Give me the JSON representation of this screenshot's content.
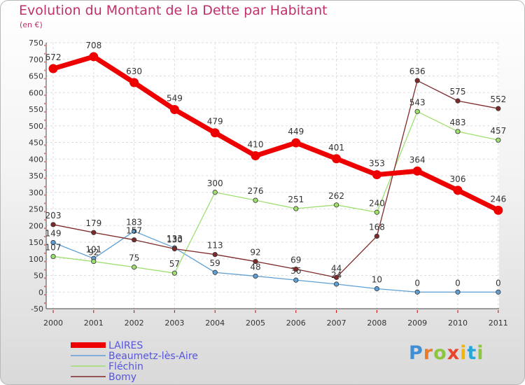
{
  "header": {
    "title": "Evolution du Montant de la Dette par Habitant",
    "subtitle": "(en €)"
  },
  "logo": {
    "letters": [
      "P",
      "r",
      "o",
      "x",
      "i",
      "t",
      "i"
    ],
    "colors": [
      "#3f8fd6",
      "#e87c2a",
      "#8cc63f",
      "#e8452c",
      "#f2b705",
      "#2aa6d6",
      "#8cc63f"
    ]
  },
  "chart_data": {
    "type": "line",
    "title": "Evolution du Montant de la Dette par Habitant",
    "subtitle": "(en €)",
    "xlabel": "",
    "ylabel": "",
    "x": [
      "2000",
      "2001",
      "2002",
      "2003",
      "2004",
      "2005",
      "2006",
      "2007",
      "2008",
      "2009",
      "2010",
      "2011"
    ],
    "ylim": [
      -50,
      750
    ],
    "yticks": [
      -50,
      0,
      50,
      100,
      150,
      200,
      250,
      300,
      350,
      400,
      450,
      500,
      550,
      600,
      650,
      700,
      750
    ],
    "grid": true,
    "legend": "bottom-left",
    "series": [
      {
        "name": "LAIRES",
        "color": "#ee0000",
        "width": 7,
        "values": [
          672,
          708,
          630,
          549,
          479,
          410,
          449,
          401,
          353,
          364,
          306,
          246
        ]
      },
      {
        "name": "Beaumetz-lès-Aire",
        "color": "#5f9fd3",
        "width": 1.3,
        "values": [
          149,
          101,
          183,
          133,
          59,
          48,
          36,
          24,
          10,
          0,
          0,
          0
        ]
      },
      {
        "name": "Fléchin",
        "color": "#9fdf6f",
        "width": 1.3,
        "values": [
          107,
          92,
          75,
          57,
          300,
          276,
          251,
          262,
          240,
          543,
          483,
          457
        ]
      },
      {
        "name": "Bomy",
        "color": "#7f2a2a",
        "width": 1.3,
        "values": [
          203,
          179,
          157,
          130,
          113,
          92,
          69,
          44,
          168,
          636,
          575,
          552
        ]
      }
    ]
  }
}
